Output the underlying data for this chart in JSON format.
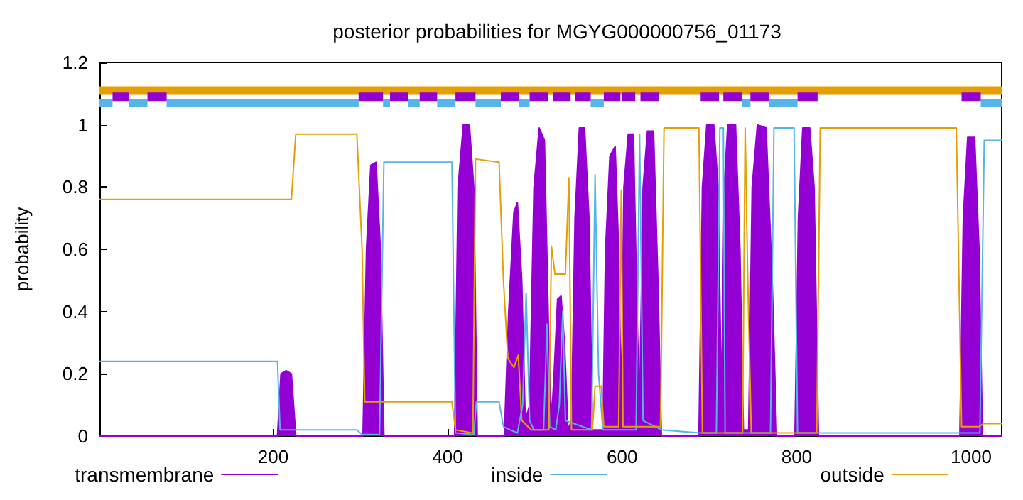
{
  "chart_data": {
    "type": "line",
    "title": "posterior probabilities for MGYG000000756_01173",
    "ylabel": "probability",
    "xlim": [
      1,
      1035
    ],
    "xticks": [
      200,
      400,
      600,
      800,
      1000
    ],
    "ylim": [
      0,
      1.2
    ],
    "yticks": [
      0,
      0.2,
      0.4,
      0.6,
      0.8,
      1,
      1.2
    ],
    "grid": false,
    "legend": "bottom",
    "marker": "none",
    "series": [
      {
        "name": "transmembrane",
        "type": "area",
        "color": "#9400d3",
        "x": [
          1,
          205,
          209,
          215,
          221,
          226,
          303,
          307,
          312,
          318,
          323,
          327,
          408,
          412,
          418,
          425,
          430,
          434,
          465,
          470,
          476,
          480,
          485,
          489,
          494,
          499,
          505,
          511,
          516,
          519,
          522,
          526,
          530,
          534,
          538,
          542,
          546,
          551,
          557,
          562,
          566,
          578,
          581,
          586,
          592,
          596,
          599,
          602,
          607,
          613,
          617,
          620,
          624,
          629,
          636,
          641,
          645,
          688,
          692,
          697,
          705,
          710,
          714,
          717,
          721,
          730,
          735,
          739,
          745,
          749,
          755,
          765,
          772,
          777,
          798,
          802,
          807,
          815,
          820,
          825,
          987,
          991,
          996,
          1004,
          1009,
          1013,
          1035
        ],
        "values": [
          0,
          0,
          0.2,
          0.21,
          0.2,
          0,
          0,
          0.6,
          0.87,
          0.88,
          0.6,
          0,
          0,
          0.8,
          1,
          1,
          0.8,
          0,
          0,
          0.4,
          0.72,
          0.75,
          0.5,
          0.05,
          0.1,
          0.8,
          0.99,
          0.95,
          0.3,
          0.05,
          0.2,
          0.44,
          0.45,
          0.3,
          0.02,
          0.05,
          0.7,
          0.99,
          0.99,
          0.7,
          0.02,
          0.02,
          0.6,
          0.9,
          0.93,
          0.6,
          0.1,
          0.8,
          0.97,
          0.97,
          0.4,
          0.1,
          0.8,
          0.98,
          0.98,
          0.5,
          0,
          0,
          0.8,
          1,
          1,
          0.8,
          0.1,
          0.8,
          1,
          1,
          0.6,
          0.02,
          0.02,
          0.8,
          1,
          0.99,
          0.5,
          0,
          0,
          0.7,
          0.99,
          0.99,
          0.8,
          0,
          0,
          0.7,
          0.96,
          0.96,
          0.6,
          0,
          0
        ]
      },
      {
        "name": "inside",
        "color": "#56b4e9",
        "x": [
          1,
          205,
          208,
          296,
          302,
          322,
          327,
          405,
          409,
          430,
          433,
          459,
          464,
          480,
          486,
          490,
          494,
          499,
          510,
          514,
          517,
          524,
          528,
          532,
          535,
          565,
          569,
          573,
          578,
          616,
          620,
          624,
          645,
          688,
          708,
          712,
          716,
          718,
          770,
          774,
          797,
          801,
          989,
          1010,
          1015,
          1035
        ],
        "values": [
          0.24,
          0.24,
          0.02,
          0.02,
          0.005,
          0.005,
          0.88,
          0.88,
          0.01,
          0.005,
          0.11,
          0.11,
          0.03,
          0.01,
          0.1,
          0.46,
          0.05,
          0.02,
          0.02,
          0.36,
          0.03,
          0.02,
          0.1,
          0.4,
          0.05,
          0.02,
          0.84,
          0.2,
          0.02,
          0.02,
          0.97,
          0.05,
          0.02,
          0.01,
          0.01,
          0.99,
          0.99,
          0.01,
          0.01,
          0.99,
          0.99,
          0.01,
          0.01,
          0.01,
          0.95,
          0.95
        ]
      },
      {
        "name": "outside",
        "color": "#e69f00",
        "x": [
          1,
          221,
          226,
          296,
          302,
          305,
          405,
          409,
          429,
          432,
          459,
          464,
          469,
          476,
          481,
          485,
          496,
          516,
          519,
          523,
          535,
          539,
          542,
          566,
          569,
          576,
          579,
          596,
          599,
          601,
          644,
          648,
          688,
          692,
          738,
          741,
          744,
          748,
          823,
          827,
          983,
          989,
          1009,
          1014,
          1035
        ],
        "values": [
          0.76,
          0.76,
          0.97,
          0.97,
          0.6,
          0.11,
          0.11,
          0.02,
          0.01,
          0.89,
          0.88,
          0.5,
          0.25,
          0.22,
          0.26,
          0.05,
          0.02,
          0.02,
          0.61,
          0.52,
          0.52,
          0.83,
          0.02,
          0.02,
          0.16,
          0.16,
          0.03,
          0.03,
          0.79,
          0.03,
          0.03,
          0.99,
          0.99,
          0.01,
          0.01,
          0.99,
          0.5,
          0.01,
          0.01,
          0.99,
          0.99,
          0.03,
          0.03,
          0.04,
          0.04
        ]
      },
      {
        "color": "#e69f00",
        "x": [
          1,
          1035
        ],
        "values": [
          1.11,
          1.11
        ]
      },
      {
        "color": "#56b4e9",
        "x": [
          1,
          16,
          25,
          35,
          56,
          67,
          78,
          298,
          312,
          326,
          334,
          344,
          355,
          368,
          378,
          388,
          409,
          420,
          432,
          461,
          471,
          482,
          494,
          504,
          564,
          579,
          660,
          737,
          747,
          757,
          768,
          801,
          900,
          1011,
          1035
        ],
        "values": [
          1.07,
          1.07,
          null,
          1.07,
          1.07,
          null,
          1.07,
          1.07,
          null,
          1.07,
          1.07,
          null,
          1.07,
          1.07,
          null,
          1.07,
          1.07,
          null,
          1.07,
          1.07,
          null,
          1.07,
          1.07,
          null,
          1.07,
          1.07,
          null,
          1.07,
          1.07,
          null,
          1.07,
          1.07,
          null,
          1.07,
          1.07
        ]
      },
      {
        "color": "#9400d3",
        "x": [
          16,
          35,
          45,
          56,
          78,
          188,
          298,
          326,
          330,
          334,
          355,
          361,
          368,
          388,
          398,
          409,
          432,
          446,
          461,
          482,
          488,
          494,
          515,
          518,
          521,
          541,
          543,
          546,
          564,
          571,
          579,
          598,
          599,
          600,
          615,
          618,
          621,
          642,
          666,
          690,
          711,
          713,
          716,
          737,
          742,
          747,
          768,
          784,
          801,
          824,
          906,
          989,
          1011
        ],
        "values": [
          1.09,
          1.09,
          null,
          1.09,
          1.09,
          null,
          1.09,
          1.09,
          null,
          1.09,
          1.09,
          null,
          1.09,
          1.09,
          null,
          1.09,
          1.09,
          null,
          1.09,
          1.09,
          null,
          1.09,
          1.09,
          null,
          1.09,
          1.09,
          null,
          1.09,
          1.09,
          null,
          1.09,
          1.09,
          null,
          1.09,
          1.09,
          null,
          1.09,
          1.09,
          null,
          1.09,
          1.09,
          null,
          1.09,
          1.09,
          null,
          1.09,
          1.09,
          null,
          1.09,
          1.09,
          null,
          1.09,
          1.09
        ]
      }
    ]
  }
}
